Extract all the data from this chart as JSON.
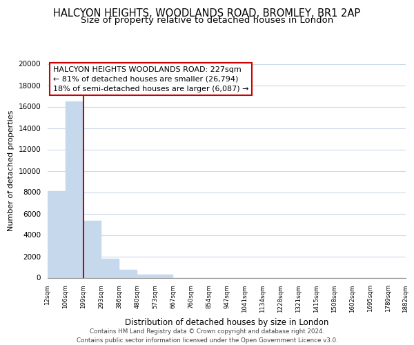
{
  "title": "HALCYON HEIGHTS, WOODLANDS ROAD, BROMLEY, BR1 2AP",
  "subtitle": "Size of property relative to detached houses in London",
  "xlabel": "Distribution of detached houses by size in London",
  "ylabel": "Number of detached properties",
  "bar_values": [
    8100,
    16500,
    5300,
    1800,
    750,
    270,
    270,
    0,
    0,
    0,
    0,
    0,
    0,
    0,
    0,
    0,
    0,
    0,
    0,
    0
  ],
  "tick_labels": [
    "12sqm",
    "106sqm",
    "199sqm",
    "293sqm",
    "386sqm",
    "480sqm",
    "573sqm",
    "667sqm",
    "760sqm",
    "854sqm",
    "947sqm",
    "1041sqm",
    "1134sqm",
    "1228sqm",
    "1321sqm",
    "1415sqm",
    "1508sqm",
    "1602sqm",
    "1695sqm",
    "1789sqm",
    "1882sqm"
  ],
  "bar_color": "#c5d8ec",
  "bar_edge_color": "#c5d8ec",
  "vline_x": 2,
  "vline_color": "#cc0000",
  "annotation_line1": "HALCYON HEIGHTS WOODLANDS ROAD: 227sqm",
  "annotation_line2": "← 81% of detached houses are smaller (26,794)",
  "annotation_line3": "18% of semi-detached houses are larger (6,087) →",
  "ylim": [
    0,
    20000
  ],
  "yticks": [
    0,
    2000,
    4000,
    6000,
    8000,
    10000,
    12000,
    14000,
    16000,
    18000,
    20000
  ],
  "background_color": "#ffffff",
  "grid_color": "#ccd9e8",
  "footer_text": "Contains HM Land Registry data © Crown copyright and database right 2024.\nContains public sector information licensed under the Open Government Licence v3.0.",
  "title_fontsize": 10.5,
  "subtitle_fontsize": 9.5,
  "annotation_fontsize": 8,
  "ylabel_fontsize": 8,
  "xlabel_fontsize": 8.5
}
